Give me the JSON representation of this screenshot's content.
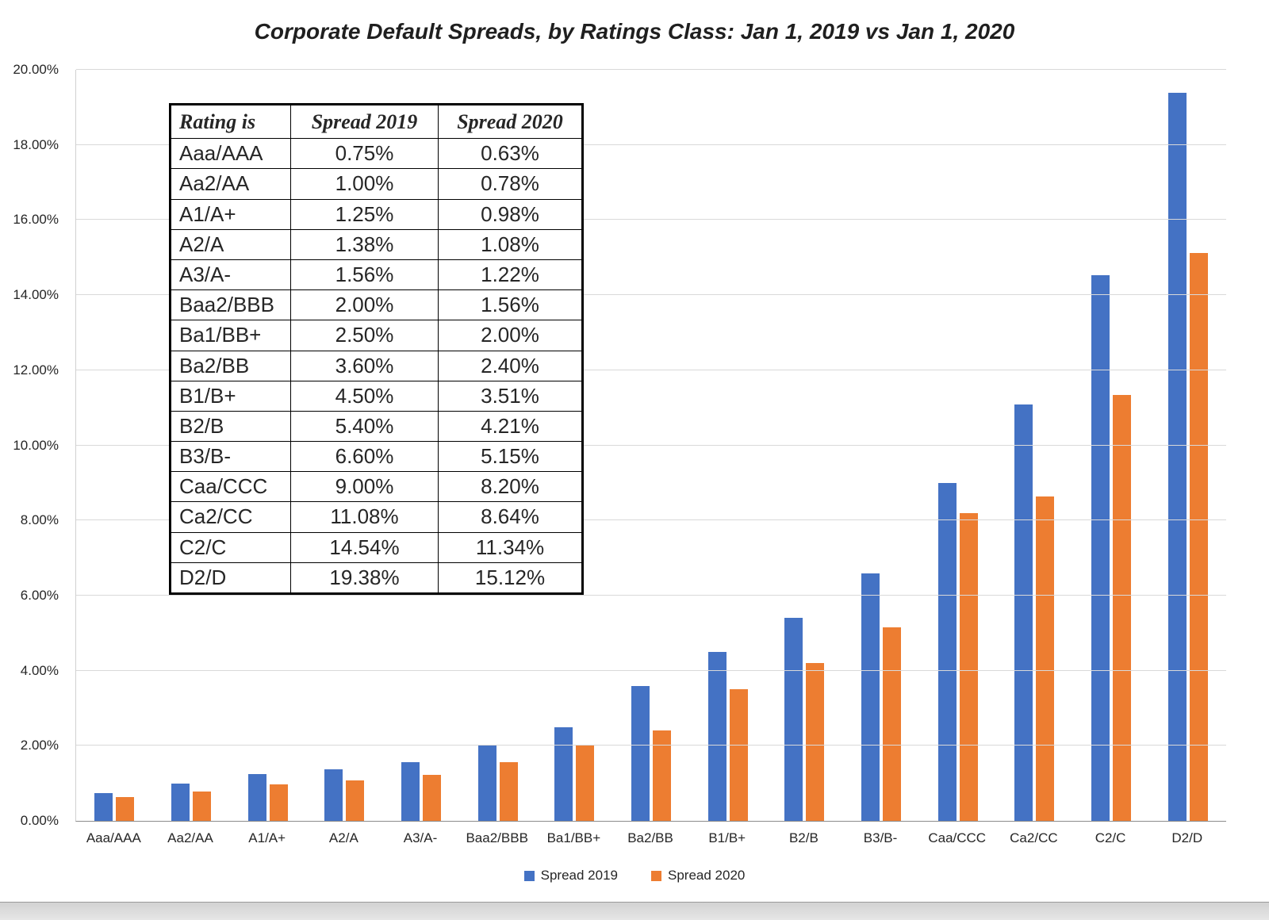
{
  "chart_data": {
    "type": "bar",
    "title": "Corporate Default Spreads, by Ratings Class: Jan 1, 2019 vs Jan 1, 2020",
    "categories": [
      "Aaa/AAA",
      "Aa2/AA",
      "A1/A+",
      "A2/A",
      "A3/A-",
      "Baa2/BBB",
      "Ba1/BB+",
      "Ba2/BB",
      "B1/B+",
      "B2/B",
      "B3/B-",
      "Caa/CCC",
      "Ca2/CC",
      "C2/C",
      "D2/D"
    ],
    "series": [
      {
        "name": "Spread 2019",
        "color": "#4472C4",
        "values": [
          0.75,
          1.0,
          1.25,
          1.38,
          1.56,
          2.0,
          2.5,
          3.6,
          4.5,
          5.4,
          6.6,
          9.0,
          11.08,
          14.54,
          19.38
        ]
      },
      {
        "name": "Spread 2020",
        "color": "#ED7D31",
        "values": [
          0.63,
          0.78,
          0.98,
          1.08,
          1.22,
          1.56,
          2.0,
          2.4,
          3.51,
          4.21,
          5.15,
          8.2,
          8.64,
          11.34,
          15.12
        ]
      }
    ],
    "ylim": [
      0,
      20
    ],
    "ytick_step": 2,
    "ytick_labels": [
      "0.00%",
      "2.00%",
      "4.00%",
      "6.00%",
      "8.00%",
      "10.00%",
      "12.00%",
      "14.00%",
      "16.00%",
      "18.00%",
      "20.00%"
    ],
    "grid": true,
    "legend_position": "bottom"
  },
  "table": {
    "headers": [
      "Rating is",
      "Spread 2019",
      "Spread 2020"
    ],
    "rows": [
      [
        "Aaa/AAA",
        "0.75%",
        "0.63%"
      ],
      [
        "Aa2/AA",
        "1.00%",
        "0.78%"
      ],
      [
        "A1/A+",
        "1.25%",
        "0.98%"
      ],
      [
        "A2/A",
        "1.38%",
        "1.08%"
      ],
      [
        "A3/A-",
        "1.56%",
        "1.22%"
      ],
      [
        "Baa2/BBB",
        "2.00%",
        "1.56%"
      ],
      [
        "Ba1/BB+",
        "2.50%",
        "2.00%"
      ],
      [
        "Ba2/BB",
        "3.60%",
        "2.40%"
      ],
      [
        "B1/B+",
        "4.50%",
        "3.51%"
      ],
      [
        "B2/B",
        "5.40%",
        "4.21%"
      ],
      [
        "B3/B-",
        "6.60%",
        "5.15%"
      ],
      [
        "Caa/CCC",
        "9.00%",
        "8.20%"
      ],
      [
        "Ca2/CC",
        "11.08%",
        "8.64%"
      ],
      [
        "C2/C",
        "14.54%",
        "11.34%"
      ],
      [
        "D2/D",
        "19.38%",
        "15.12%"
      ]
    ]
  }
}
